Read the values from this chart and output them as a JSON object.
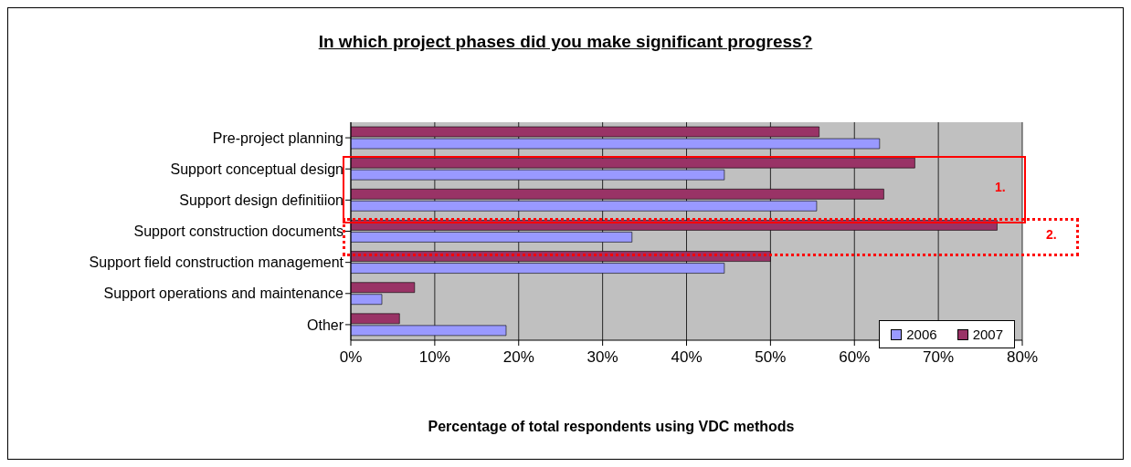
{
  "chart_data": {
    "type": "bar",
    "orientation": "horizontal",
    "title": "In which project phases did you make significant progress?",
    "xlabel": "Percentage of total respondents using VDC methods",
    "categories": [
      "Pre-project planning",
      "Support conceptual design",
      "Support design definitiion",
      "Support construction documents",
      "Support field construction management",
      "Support operations and maintenance",
      "Other"
    ],
    "series": [
      {
        "name": "2006",
        "color": "#9999ff",
        "values": [
          63,
          44.5,
          55.5,
          33.5,
          44.5,
          3.7,
          18.5
        ]
      },
      {
        "name": "2007",
        "color": "#993366",
        "values": [
          55.8,
          67.2,
          63.5,
          77,
          50,
          7.6,
          5.8
        ]
      }
    ],
    "xlim": [
      0,
      80
    ],
    "xticks": [
      {
        "value": 0,
        "label": "0%"
      },
      {
        "value": 10,
        "label": "10%"
      },
      {
        "value": 20,
        "label": "20%"
      },
      {
        "value": 30,
        "label": "30%"
      },
      {
        "value": 40,
        "label": "40%"
      },
      {
        "value": 50,
        "label": "50%"
      },
      {
        "value": 60,
        "label": "60%"
      },
      {
        "value": 70,
        "label": "70%"
      },
      {
        "value": 80,
        "label": "80%"
      }
    ],
    "grid": "x",
    "legend": "bottom right",
    "annotations": [
      "1.",
      "2."
    ]
  }
}
